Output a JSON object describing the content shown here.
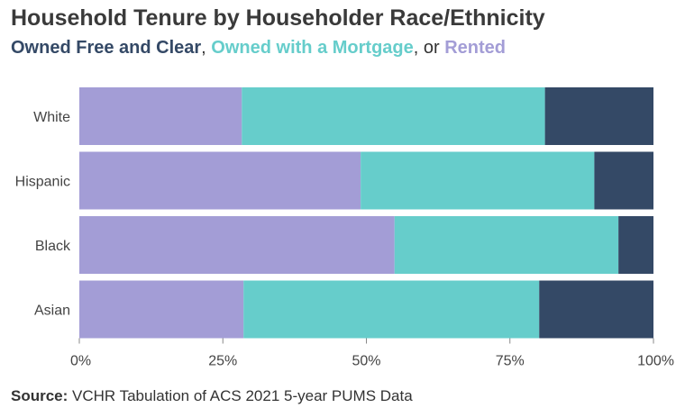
{
  "title": "Household Tenure by Householder Race/Ethnicity",
  "subtitle": {
    "part1": "Owned Free and Clear",
    "sep1": ", ",
    "part2": "Owned with a Mortgage",
    "sep2": ", or ",
    "part3": "Rented"
  },
  "source": {
    "label": "Source:",
    "text": " VCHR Tabulation of ACS 2021 5-year PUMS Data"
  },
  "colors": {
    "owned_free_and_clear": "#344966",
    "owned_with_a_mortgage": "#66cdcb",
    "rented": "#a39dd6"
  },
  "chart_data": {
    "type": "bar",
    "orientation": "horizontal",
    "stacked": true,
    "percent": true,
    "categories": [
      "White",
      "Hispanic",
      "Black",
      "Asian"
    ],
    "series": [
      {
        "name": "Rented",
        "color": "#a39dd6",
        "values": [
          28.3,
          49.0,
          54.9,
          28.6
        ]
      },
      {
        "name": "Owned with a Mortgage",
        "color": "#66cdcb",
        "values": [
          52.8,
          40.7,
          39.0,
          51.5
        ]
      },
      {
        "name": "Owned Free and Clear",
        "color": "#344966",
        "values": [
          18.9,
          10.3,
          6.1,
          19.9
        ]
      }
    ],
    "xlim": [
      0,
      100
    ],
    "xticks": [
      "0%",
      "25%",
      "50%",
      "75%",
      "100%"
    ],
    "grid": false
  }
}
